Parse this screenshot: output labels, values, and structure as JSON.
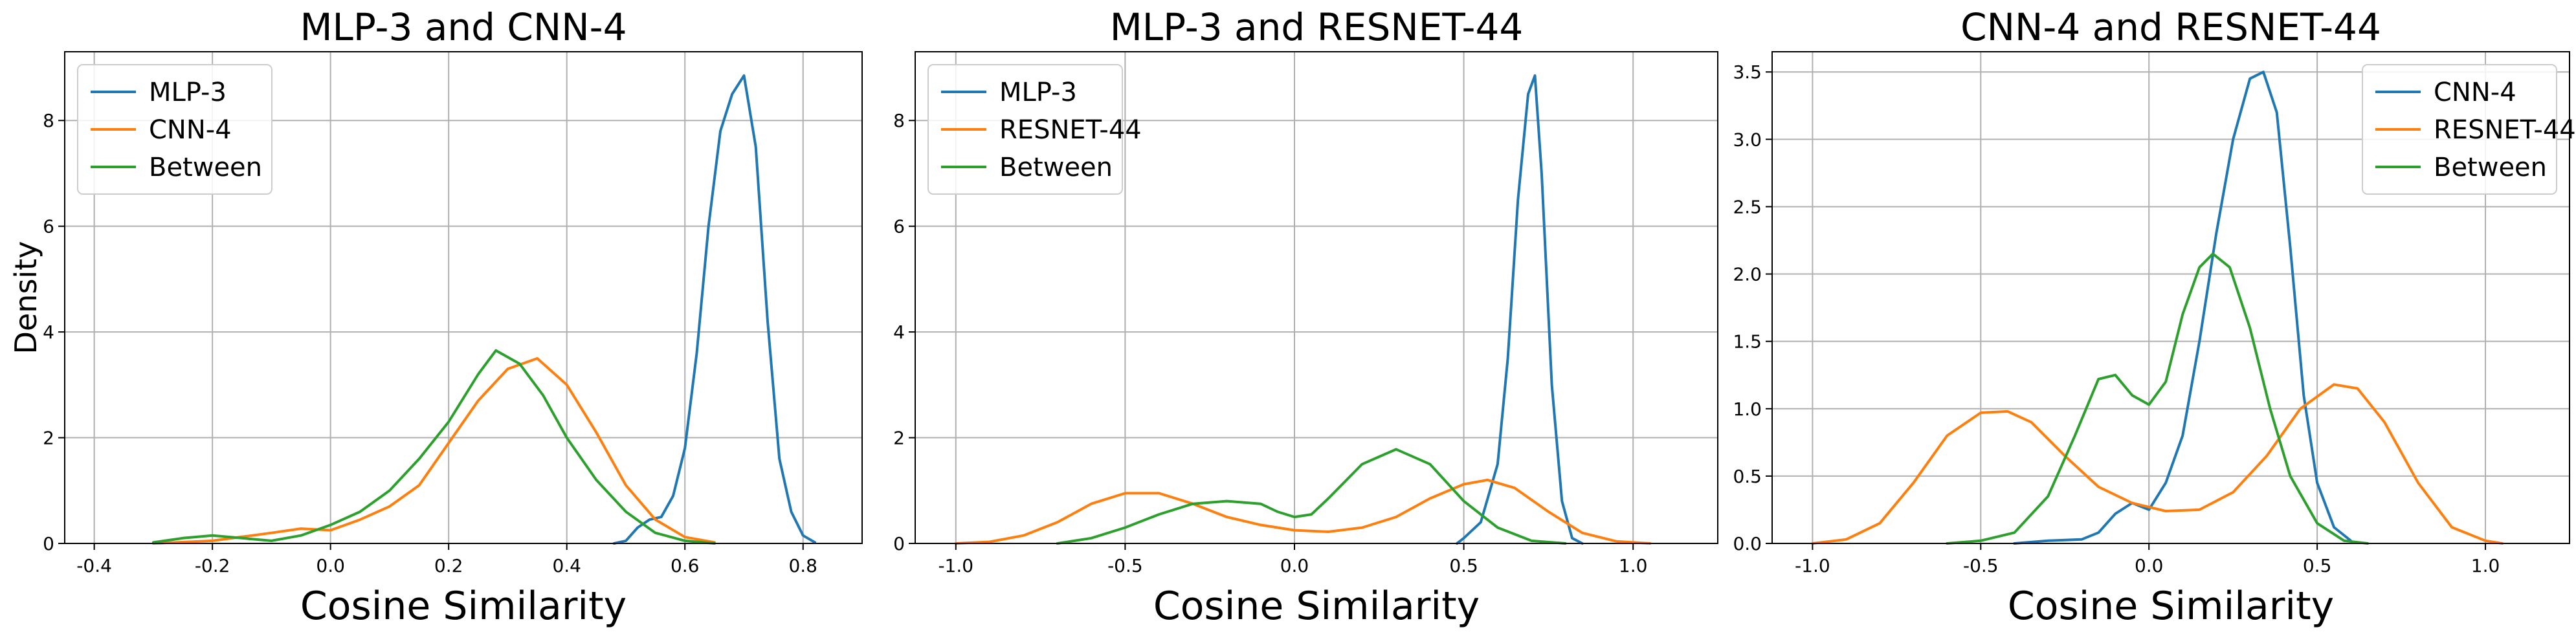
{
  "colors": {
    "series_1": "#1f77b4",
    "series_2": "#ff7f0e",
    "between": "#2ca02c",
    "grid": "#b0b0b0"
  },
  "chart_data": [
    {
      "type": "line",
      "title": "MLP-3 and CNN-4",
      "xlabel": "Cosine Similarity",
      "ylabel": "Density",
      "xlim": [
        -0.45,
        0.9
      ],
      "ylim": [
        0,
        9.3
      ],
      "xticks": [
        -0.4,
        -0.2,
        0.0,
        0.2,
        0.4,
        0.6,
        0.8
      ],
      "xtick_labels": [
        "-0.4",
        "-0.2",
        "0.0",
        "0.2",
        "0.4",
        "0.6",
        "0.8"
      ],
      "yticks": [
        0,
        2,
        4,
        6,
        8
      ],
      "ytick_labels": [
        "0",
        "2",
        "4",
        "6",
        "8"
      ],
      "grid": true,
      "legend_position": "top-left",
      "series": [
        {
          "name": "MLP-3",
          "color": "#1f77b4",
          "points": [
            [
              0.48,
              0
            ],
            [
              0.5,
              0.05
            ],
            [
              0.52,
              0.3
            ],
            [
              0.54,
              0.45
            ],
            [
              0.56,
              0.5
            ],
            [
              0.58,
              0.9
            ],
            [
              0.6,
              1.8
            ],
            [
              0.62,
              3.6
            ],
            [
              0.64,
              6.0
            ],
            [
              0.66,
              7.8
            ],
            [
              0.68,
              8.5
            ],
            [
              0.7,
              8.85
            ],
            [
              0.72,
              7.5
            ],
            [
              0.74,
              4.2
            ],
            [
              0.76,
              1.6
            ],
            [
              0.78,
              0.6
            ],
            [
              0.8,
              0.15
            ],
            [
              0.82,
              0.02
            ]
          ]
        },
        {
          "name": "CNN-4",
          "color": "#ff7f0e",
          "points": [
            [
              -0.3,
              0
            ],
            [
              -0.2,
              0.05
            ],
            [
              -0.1,
              0.2
            ],
            [
              -0.05,
              0.28
            ],
            [
              0.0,
              0.25
            ],
            [
              0.05,
              0.45
            ],
            [
              0.1,
              0.7
            ],
            [
              0.15,
              1.1
            ],
            [
              0.2,
              1.9
            ],
            [
              0.25,
              2.7
            ],
            [
              0.3,
              3.3
            ],
            [
              0.35,
              3.5
            ],
            [
              0.4,
              3.0
            ],
            [
              0.45,
              2.1
            ],
            [
              0.5,
              1.1
            ],
            [
              0.55,
              0.45
            ],
            [
              0.6,
              0.12
            ],
            [
              0.65,
              0.02
            ]
          ]
        },
        {
          "name": "Between",
          "color": "#2ca02c",
          "points": [
            [
              -0.3,
              0.02
            ],
            [
              -0.25,
              0.1
            ],
            [
              -0.2,
              0.15
            ],
            [
              -0.15,
              0.1
            ],
            [
              -0.1,
              0.05
            ],
            [
              -0.05,
              0.15
            ],
            [
              0.0,
              0.35
            ],
            [
              0.05,
              0.6
            ],
            [
              0.1,
              1.0
            ],
            [
              0.15,
              1.6
            ],
            [
              0.2,
              2.3
            ],
            [
              0.25,
              3.2
            ],
            [
              0.28,
              3.65
            ],
            [
              0.32,
              3.4
            ],
            [
              0.36,
              2.8
            ],
            [
              0.4,
              2.0
            ],
            [
              0.45,
              1.2
            ],
            [
              0.5,
              0.6
            ],
            [
              0.55,
              0.2
            ],
            [
              0.6,
              0.05
            ],
            [
              0.65,
              0
            ]
          ]
        }
      ]
    },
    {
      "type": "line",
      "title": "MLP-3 and RESNET-44",
      "xlabel": "Cosine Similarity",
      "ylabel": "",
      "xlim": [
        -1.12,
        1.25
      ],
      "ylim": [
        0,
        9.3
      ],
      "xticks": [
        -1.0,
        -0.5,
        0.0,
        0.5,
        1.0
      ],
      "xtick_labels": [
        "-1.0",
        "-0.5",
        "0.0",
        "0.5",
        "1.0"
      ],
      "yticks": [
        0,
        2,
        4,
        6,
        8
      ],
      "ytick_labels": [
        "0",
        "2",
        "4",
        "6",
        "8"
      ],
      "grid": true,
      "legend_position": "top-left",
      "series": [
        {
          "name": "MLP-3",
          "color": "#1f77b4",
          "points": [
            [
              0.48,
              0
            ],
            [
              0.5,
              0.1
            ],
            [
              0.55,
              0.4
            ],
            [
              0.6,
              1.5
            ],
            [
              0.63,
              3.5
            ],
            [
              0.66,
              6.5
            ],
            [
              0.69,
              8.5
            ],
            [
              0.71,
              8.85
            ],
            [
              0.73,
              7.0
            ],
            [
              0.76,
              3.0
            ],
            [
              0.79,
              0.8
            ],
            [
              0.82,
              0.1
            ],
            [
              0.85,
              0
            ]
          ]
        },
        {
          "name": "RESNET-44",
          "color": "#ff7f0e",
          "points": [
            [
              -1.0,
              0
            ],
            [
              -0.9,
              0.03
            ],
            [
              -0.8,
              0.15
            ],
            [
              -0.7,
              0.4
            ],
            [
              -0.6,
              0.75
            ],
            [
              -0.5,
              0.95
            ],
            [
              -0.4,
              0.95
            ],
            [
              -0.3,
              0.75
            ],
            [
              -0.2,
              0.5
            ],
            [
              -0.1,
              0.35
            ],
            [
              0.0,
              0.25
            ],
            [
              0.1,
              0.22
            ],
            [
              0.2,
              0.3
            ],
            [
              0.3,
              0.5
            ],
            [
              0.4,
              0.85
            ],
            [
              0.5,
              1.12
            ],
            [
              0.57,
              1.2
            ],
            [
              0.65,
              1.05
            ],
            [
              0.75,
              0.6
            ],
            [
              0.85,
              0.2
            ],
            [
              0.95,
              0.04
            ],
            [
              1.05,
              0
            ]
          ]
        },
        {
          "name": "Between",
          "color": "#2ca02c",
          "points": [
            [
              -0.7,
              0
            ],
            [
              -0.6,
              0.1
            ],
            [
              -0.5,
              0.3
            ],
            [
              -0.4,
              0.55
            ],
            [
              -0.3,
              0.75
            ],
            [
              -0.2,
              0.8
            ],
            [
              -0.1,
              0.75
            ],
            [
              -0.05,
              0.6
            ],
            [
              0.0,
              0.5
            ],
            [
              0.05,
              0.55
            ],
            [
              0.1,
              0.85
            ],
            [
              0.2,
              1.5
            ],
            [
              0.3,
              1.78
            ],
            [
              0.4,
              1.5
            ],
            [
              0.5,
              0.8
            ],
            [
              0.6,
              0.3
            ],
            [
              0.7,
              0.05
            ],
            [
              0.8,
              0
            ]
          ]
        }
      ]
    },
    {
      "type": "line",
      "title": "CNN-4 and RESNET-44",
      "xlabel": "Cosine Similarity",
      "ylabel": "",
      "xlim": [
        -1.12,
        1.25
      ],
      "ylim": [
        0,
        3.65
      ],
      "xticks": [
        -1.0,
        -0.5,
        0.0,
        0.5,
        1.0
      ],
      "xtick_labels": [
        "-1.0",
        "-0.5",
        "0.0",
        "0.5",
        "1.0"
      ],
      "yticks": [
        0.0,
        0.5,
        1.0,
        1.5,
        2.0,
        2.5,
        3.0,
        3.5
      ],
      "ytick_labels": [
        "0.0",
        "0.5",
        "1.0",
        "1.5",
        "2.0",
        "2.5",
        "3.0",
        "3.5"
      ],
      "grid": true,
      "legend_position": "top-right",
      "series": [
        {
          "name": "CNN-4",
          "color": "#1f77b4",
          "points": [
            [
              -0.4,
              0
            ],
            [
              -0.3,
              0.02
            ],
            [
              -0.2,
              0.03
            ],
            [
              -0.15,
              0.08
            ],
            [
              -0.1,
              0.22
            ],
            [
              -0.05,
              0.3
            ],
            [
              0.0,
              0.25
            ],
            [
              0.05,
              0.45
            ],
            [
              0.1,
              0.8
            ],
            [
              0.15,
              1.5
            ],
            [
              0.2,
              2.3
            ],
            [
              0.25,
              3.0
            ],
            [
              0.3,
              3.45
            ],
            [
              0.34,
              3.5
            ],
            [
              0.38,
              3.2
            ],
            [
              0.42,
              2.2
            ],
            [
              0.46,
              1.1
            ],
            [
              0.5,
              0.45
            ],
            [
              0.55,
              0.12
            ],
            [
              0.6,
              0.02
            ]
          ]
        },
        {
          "name": "RESNET-44",
          "color": "#ff7f0e",
          "points": [
            [
              -1.0,
              0
            ],
            [
              -0.9,
              0.03
            ],
            [
              -0.8,
              0.15
            ],
            [
              -0.7,
              0.45
            ],
            [
              -0.6,
              0.8
            ],
            [
              -0.5,
              0.97
            ],
            [
              -0.42,
              0.98
            ],
            [
              -0.35,
              0.9
            ],
            [
              -0.25,
              0.65
            ],
            [
              -0.15,
              0.42
            ],
            [
              -0.05,
              0.3
            ],
            [
              0.05,
              0.24
            ],
            [
              0.15,
              0.25
            ],
            [
              0.25,
              0.38
            ],
            [
              0.35,
              0.65
            ],
            [
              0.45,
              1.0
            ],
            [
              0.55,
              1.18
            ],
            [
              0.62,
              1.15
            ],
            [
              0.7,
              0.9
            ],
            [
              0.8,
              0.45
            ],
            [
              0.9,
              0.12
            ],
            [
              1.0,
              0.02
            ],
            [
              1.05,
              0
            ]
          ]
        },
        {
          "name": "Between",
          "color": "#2ca02c",
          "points": [
            [
              -0.6,
              0
            ],
            [
              -0.5,
              0.02
            ],
            [
              -0.4,
              0.08
            ],
            [
              -0.3,
              0.35
            ],
            [
              -0.22,
              0.8
            ],
            [
              -0.15,
              1.22
            ],
            [
              -0.1,
              1.25
            ],
            [
              -0.05,
              1.1
            ],
            [
              0.0,
              1.03
            ],
            [
              0.05,
              1.2
            ],
            [
              0.1,
              1.7
            ],
            [
              0.15,
              2.05
            ],
            [
              0.19,
              2.15
            ],
            [
              0.24,
              2.05
            ],
            [
              0.3,
              1.6
            ],
            [
              0.36,
              1.0
            ],
            [
              0.42,
              0.5
            ],
            [
              0.5,
              0.15
            ],
            [
              0.58,
              0.02
            ],
            [
              0.65,
              0
            ]
          ]
        }
      ]
    }
  ]
}
